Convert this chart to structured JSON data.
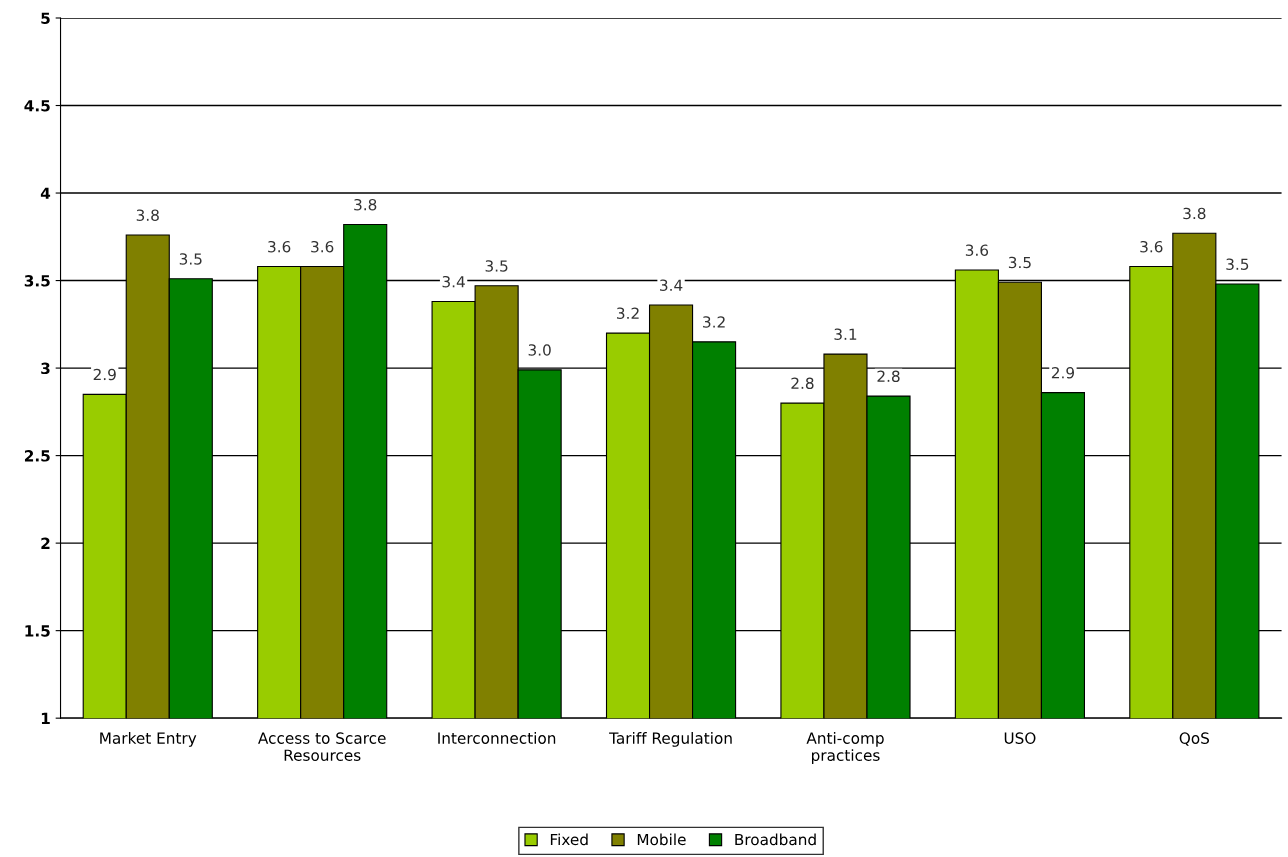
{
  "chart_data": {
    "type": "bar",
    "categories": [
      "Market Entry",
      "Access to Scarce\nResources",
      "Interconnection",
      "Tariff Regulation",
      "Anti-comp\npractices",
      "USO",
      "QoS"
    ],
    "series": [
      {
        "name": "Fixed",
        "color": "#99cc00",
        "values": [
          2.85,
          3.58,
          3.38,
          3.2,
          2.8,
          3.56,
          3.58
        ],
        "value_labels": [
          "2.9",
          "3.6",
          "3.4",
          "3.2",
          "2.8",
          "3.6",
          "3.6"
        ]
      },
      {
        "name": "Mobile",
        "color": "#808000",
        "values": [
          3.76,
          3.58,
          3.47,
          3.36,
          3.08,
          3.49,
          3.77
        ],
        "value_labels": [
          "3.8",
          "3.6",
          "3.5",
          "3.4",
          "3.1",
          "3.5",
          "3.8"
        ]
      },
      {
        "name": "Broadband",
        "color": "#008000",
        "values": [
          3.51,
          3.82,
          2.99,
          3.15,
          2.84,
          2.86,
          3.48
        ],
        "value_labels": [
          "3.5",
          "3.8",
          "3.0",
          "3.2",
          "2.8",
          "2.9",
          "3.5"
        ]
      }
    ],
    "ylim": [
      1,
      5
    ],
    "yticks": [
      1,
      1.5,
      2,
      2.5,
      3,
      3.5,
      4,
      4.5,
      5
    ],
    "grid": "y",
    "legend": "bottom"
  }
}
